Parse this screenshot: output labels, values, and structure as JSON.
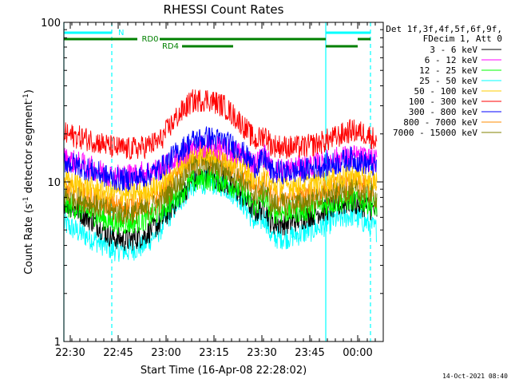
{
  "chart_data": {
    "type": "line",
    "title": "RHESSI Count Rates",
    "xlabel": "Start Time (16-Apr-08 22:28:02)",
    "ylabel_pre": "Count Rate (s",
    "ylabel_sup": "-1",
    "ylabel_mid": " detector segment",
    "ylabel_sup2": "-1",
    "ylabel_post": ")",
    "x_unit": "minutes after 22:28:02",
    "xlim": [
      0,
      100
    ],
    "ylim": [
      1,
      100
    ],
    "y_scale": "log",
    "grid": false,
    "legend_placement": "right, outside plot",
    "x_ticks": [
      {
        "v": 2,
        "label": "22:30"
      },
      {
        "v": 17,
        "label": "22:45"
      },
      {
        "v": 32,
        "label": "23:00"
      },
      {
        "v": 47,
        "label": "23:15"
      },
      {
        "v": 62,
        "label": "23:30"
      },
      {
        "v": 77,
        "label": "23:45"
      },
      {
        "v": 92,
        "label": "00:00"
      }
    ],
    "y_ticks": [
      {
        "v": 1,
        "label": "1"
      },
      {
        "v": 10,
        "label": "10"
      },
      {
        "v": 100,
        "label": "100"
      }
    ],
    "legend_header": [
      "Det 1f,3f,4f,5f,6f,9f,",
      "FDecim 1, Att 0"
    ],
    "series": [
      {
        "name": "3 - 6 keV",
        "color": "#000000",
        "x": [
          0,
          5,
          10,
          15,
          20,
          25,
          30,
          35,
          40,
          45,
          50,
          55,
          60,
          63,
          65,
          70,
          75,
          80,
          85,
          90,
          95,
          98
        ],
        "y": [
          7.5,
          6.5,
          5.5,
          4.5,
          4.3,
          4.6,
          5.5,
          7.5,
          10,
          11,
          10,
          8.5,
          6.5,
          7,
          5.5,
          5.5,
          6,
          6.5,
          7,
          7.5,
          7,
          6.5
        ]
      },
      {
        "name": "6 - 12 keV",
        "color": "#ff00ff",
        "x": [
          0,
          5,
          10,
          15,
          20,
          25,
          30,
          35,
          40,
          45,
          50,
          55,
          60,
          63,
          65,
          70,
          75,
          80,
          85,
          90,
          95,
          98
        ],
        "y": [
          14,
          13,
          12,
          11,
          11,
          11.5,
          12,
          14,
          16,
          17,
          16,
          15,
          13,
          15,
          12,
          12,
          12.5,
          13,
          14,
          14.5,
          14,
          13.5
        ]
      },
      {
        "name": "12 - 25 keV",
        "color": "#00ff00",
        "x": [
          0,
          5,
          10,
          15,
          20,
          25,
          30,
          35,
          40,
          45,
          50,
          55,
          60,
          63,
          65,
          70,
          75,
          80,
          85,
          90,
          95,
          98
        ],
        "y": [
          7.2,
          6.8,
          6.2,
          5.6,
          5.5,
          5.8,
          6.5,
          8,
          10,
          10.5,
          10,
          9,
          7,
          8,
          6.5,
          6.5,
          6.6,
          7,
          7.5,
          7.8,
          7.5,
          7
        ]
      },
      {
        "name": "25 - 50 keV",
        "color": "#00ffff",
        "x": [
          0,
          5,
          10,
          15,
          20,
          25,
          30,
          35,
          40,
          45,
          50,
          55,
          60,
          63,
          65,
          70,
          75,
          80,
          85,
          90,
          95,
          98
        ],
        "y": [
          5.5,
          4.8,
          4.3,
          3.8,
          3.7,
          4,
          5,
          7,
          9.5,
          10,
          9.5,
          8,
          5.5,
          6,
          4.5,
          4.5,
          4.8,
          5.2,
          5.8,
          6.2,
          5.5,
          5
        ]
      },
      {
        "name": "50 - 100 keV",
        "color": "#ffcc00",
        "x": [
          0,
          5,
          10,
          15,
          20,
          25,
          30,
          35,
          40,
          45,
          50,
          55,
          60,
          63,
          65,
          70,
          75,
          80,
          85,
          90,
          95,
          98
        ],
        "y": [
          10,
          9.5,
          9,
          8.5,
          8.4,
          8.7,
          9.5,
          12,
          15,
          15.5,
          14.5,
          13,
          10.5,
          11.5,
          9.5,
          9.5,
          9.8,
          10,
          10.5,
          11,
          10.5,
          10
        ]
      },
      {
        "name": "100 - 300 keV",
        "color": "#ff0000",
        "x": [
          0,
          5,
          10,
          15,
          20,
          25,
          30,
          35,
          40,
          45,
          50,
          55,
          60,
          63,
          65,
          70,
          75,
          80,
          85,
          90,
          95,
          98
        ],
        "y": [
          20,
          19,
          18,
          16.5,
          16,
          16.5,
          18,
          25,
          32,
          33,
          30,
          24,
          18,
          20,
          17,
          16.5,
          16.5,
          17.5,
          19,
          21,
          20,
          18
        ]
      },
      {
        "name": "300 - 800 keV",
        "color": "#0000ff",
        "x": [
          0,
          5,
          10,
          15,
          20,
          25,
          30,
          35,
          40,
          45,
          50,
          55,
          60,
          63,
          65,
          70,
          75,
          80,
          85,
          90,
          95,
          98
        ],
        "y": [
          13.5,
          12.5,
          11.5,
          10.5,
          10.3,
          10.8,
          12,
          15,
          18,
          19,
          18,
          16,
          12.5,
          14,
          11.5,
          11.5,
          11.8,
          12.5,
          13,
          14,
          13,
          12.5
        ]
      },
      {
        "name": "800 - 7000 keV",
        "color": "#ff8c00",
        "x": [
          0,
          5,
          10,
          15,
          20,
          25,
          30,
          35,
          40,
          45,
          50,
          55,
          60,
          63,
          65,
          70,
          75,
          80,
          85,
          90,
          95,
          98
        ],
        "y": [
          9,
          8.5,
          7.8,
          7.2,
          7,
          7.3,
          8.2,
          10.5,
          13.5,
          14,
          13,
          11.5,
          9,
          10,
          8,
          8,
          8.2,
          8.7,
          9.2,
          9.6,
          9.2,
          8.8
        ]
      },
      {
        "name": "7000 - 15000 keV",
        "color": "#808000",
        "x": [
          0,
          5,
          10,
          15,
          20,
          25,
          30,
          35,
          40,
          45,
          50,
          55,
          60,
          63,
          65,
          70,
          75,
          80,
          85,
          90,
          95,
          98
        ],
        "y": [
          8.2,
          7.8,
          7.1,
          6.5,
          6.3,
          6.6,
          7.4,
          9.5,
          12.5,
          13,
          12,
          10.5,
          8.2,
          9,
          7.2,
          7.2,
          7.4,
          7.9,
          8.4,
          8.8,
          8.4,
          8
        ]
      }
    ],
    "annotations": {
      "cyan_bars": [
        {
          "x0": 0,
          "x1": 15,
          "label": "N"
        },
        {
          "x0": 82,
          "x1": 96,
          "label": ""
        }
      ],
      "cyan_vlines_solid": [
        0,
        82
      ],
      "cyan_vlines_dashed": [
        15,
        96
      ],
      "green_bars_upper": [
        {
          "x0": 0,
          "x1": 53,
          "label": "RD0"
        },
        {
          "x0": 53,
          "x1": 82,
          "label": ""
        },
        {
          "x0": 92,
          "x1": 96,
          "label": ""
        }
      ],
      "green_bars_lower": [
        {
          "x0": 37,
          "x1": 53,
          "label": "RD4"
        },
        {
          "x0": 82,
          "x1": 92,
          "label": ""
        }
      ]
    }
  },
  "footer": {
    "timestamp": "14-Oct-2021 08:40"
  },
  "style": {
    "cyan": "#00ffff",
    "green": "#008000"
  }
}
